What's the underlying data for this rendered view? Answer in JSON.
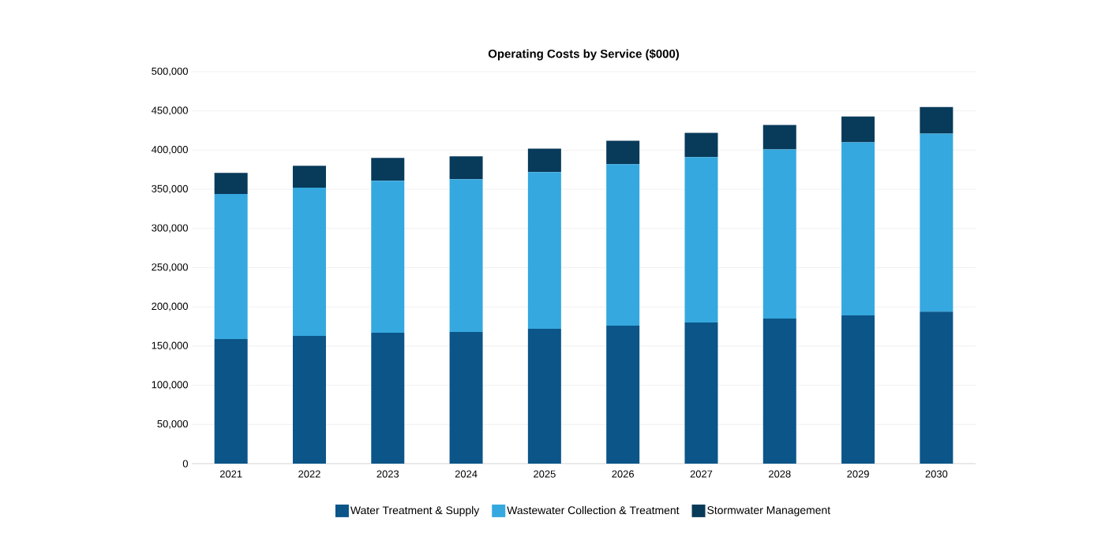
{
  "chart_data": {
    "type": "bar",
    "stacked": true,
    "title": "Operating Costs by Service ($000)",
    "categories": [
      "2021",
      "2022",
      "2023",
      "2024",
      "2025",
      "2026",
      "2027",
      "2028",
      "2029",
      "2030"
    ],
    "series": [
      {
        "name": "Water Treatment & Supply",
        "color": "#0b5588",
        "values": [
          159000,
          163000,
          167000,
          168000,
          172000,
          176000,
          180000,
          185000,
          189000,
          194000
        ]
      },
      {
        "name": "Wastewater Collection & Treatment",
        "color": "#35a8df",
        "values": [
          185000,
          189000,
          194000,
          195000,
          200000,
          206000,
          211000,
          216000,
          221000,
          227000
        ]
      },
      {
        "name": "Stormwater Management",
        "color": "#083a5a",
        "values": [
          27000,
          28000,
          29000,
          29000,
          30000,
          30000,
          31000,
          31000,
          33000,
          34000
        ]
      }
    ],
    "ylim": [
      0,
      500000
    ],
    "yticks": [
      0,
      {
        "value": 50000,
        "label": "50,000"
      },
      {
        "value": 100000,
        "label": "100,000"
      },
      {
        "value": 150000,
        "label": "150,000"
      },
      {
        "value": 200000,
        "label": "200,000"
      },
      {
        "value": 250000,
        "label": "250,000"
      },
      {
        "value": 300000,
        "label": "300,000"
      },
      {
        "value": 350000,
        "label": "350,000"
      },
      {
        "value": 400000,
        "label": "400,000"
      },
      {
        "value": 450000,
        "label": "450,000"
      },
      {
        "value": 500000,
        "label": "500,000"
      }
    ],
    "grid": "y",
    "legend": "bottom"
  }
}
